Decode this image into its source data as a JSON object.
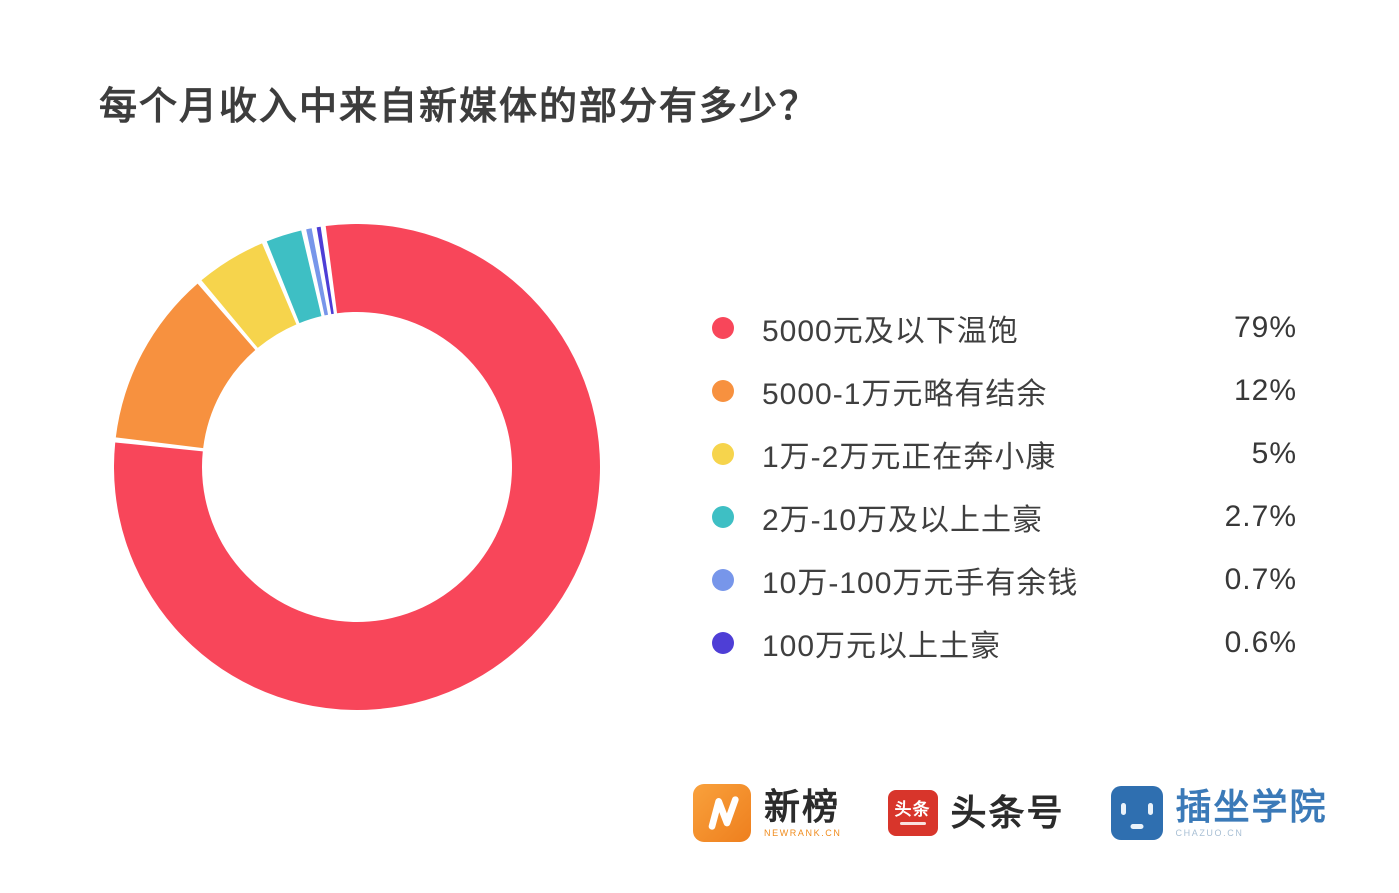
{
  "title": "每个月收入中来自新媒体的部分有多少？",
  "chart_data": {
    "type": "pie",
    "subtype": "donut",
    "title": "每个月收入中来自新媒体的部分有多少？",
    "direction": "clockwise",
    "start_angle_deg": -8,
    "legend_position": "right",
    "segments": [
      {
        "label": "5000元及以下温饱",
        "value_pct": 79,
        "display": "79%",
        "color": "#F8465A"
      },
      {
        "label": "5000-1万元略有结余",
        "value_pct": 12,
        "display": "12%",
        "color": "#F7913F"
      },
      {
        "label": "1万-2万元正在奔小康",
        "value_pct": 5,
        "display": "5%",
        "color": "#F6D44C"
      },
      {
        "label": "2万-10万及以上土豪",
        "value_pct": 2.7,
        "display": "2.7%",
        "color": "#3EBFC4"
      },
      {
        "label": "10万-100万元手有余钱",
        "value_pct": 0.7,
        "display": "0.7%",
        "color": "#7796EA"
      },
      {
        "label": "100万元以上土豪",
        "value_pct": 0.6,
        "display": "0.6%",
        "color": "#4E3ED6"
      }
    ]
  },
  "footer": {
    "logos": [
      {
        "name": "newrank",
        "title": "新榜",
        "subtitle": "NEWRANK.CN",
        "badge_color": "#EE7F1E"
      },
      {
        "name": "toutiao",
        "title": "头条号",
        "badge_text": "头条",
        "badge_color": "#D8352B"
      },
      {
        "name": "chazuo",
        "title": "插坐学院",
        "subtitle": "CHAZUO.CN",
        "badge_color": "#2F6FB0"
      }
    ]
  }
}
